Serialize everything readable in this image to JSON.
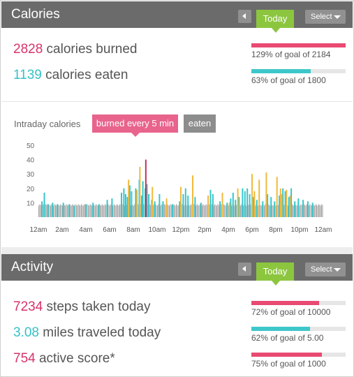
{
  "calories": {
    "title": "Calories",
    "today_label": "Today",
    "select_label": "Select",
    "burned": {
      "value": "2828",
      "label": " calories burned",
      "goal_text": "129% of goal of 2184",
      "progress": 1.0
    },
    "eaten": {
      "value": "1139",
      "label": " calories eaten",
      "goal_text": "63% of goal of 1800",
      "progress": 0.63
    }
  },
  "intraday": {
    "label": "Intraday calories",
    "tab_burned": "burned every 5 min",
    "tab_eaten": "eaten"
  },
  "chart_data": {
    "type": "bar",
    "ylim": [
      0,
      50
    ],
    "y_ticks": [
      "50",
      "40",
      "30",
      "20",
      "10"
    ],
    "x_ticks": [
      "12am",
      "2am",
      "4am",
      "6am",
      "8am",
      "10am",
      "12pm",
      "2pm",
      "4pm",
      "6pm",
      "8pm",
      "10pm",
      "12am"
    ],
    "hours_range": [
      0,
      24
    ],
    "baseline_color": "#9a9a9a",
    "series": [
      {
        "color": "#36c6cb",
        "points": [
          [
            0.3,
            11
          ],
          [
            0.5,
            17
          ],
          [
            0.8,
            9
          ],
          [
            1.2,
            10
          ],
          [
            1.6,
            9
          ],
          [
            2.1,
            10
          ],
          [
            2.6,
            9
          ],
          [
            3.0,
            8
          ],
          [
            4.0,
            9
          ],
          [
            4.6,
            10
          ],
          [
            5.1,
            9
          ],
          [
            5.8,
            12
          ],
          [
            6.2,
            13
          ],
          [
            7.0,
            17
          ],
          [
            7.2,
            20
          ],
          [
            7.35,
            16
          ],
          [
            7.5,
            14
          ],
          [
            7.7,
            22
          ],
          [
            7.85,
            18
          ],
          [
            8.2,
            20
          ],
          [
            8.5,
            26
          ],
          [
            8.7,
            15
          ],
          [
            8.8,
            25
          ],
          [
            9.0,
            20
          ],
          [
            9.15,
            23
          ],
          [
            9.3,
            16
          ],
          [
            9.55,
            12
          ],
          [
            9.8,
            11
          ],
          [
            10.2,
            16
          ],
          [
            10.5,
            11
          ],
          [
            11.3,
            9
          ],
          [
            11.9,
            11
          ],
          [
            12.2,
            16
          ],
          [
            12.4,
            20
          ],
          [
            12.6,
            15
          ],
          [
            13.2,
            14
          ],
          [
            13.7,
            10
          ],
          [
            14.5,
            19
          ],
          [
            14.7,
            16
          ],
          [
            15.3,
            11
          ],
          [
            15.9,
            10
          ],
          [
            16.2,
            13
          ],
          [
            16.4,
            17
          ],
          [
            16.6,
            12
          ],
          [
            16.9,
            14
          ],
          [
            17.2,
            20
          ],
          [
            17.4,
            18
          ],
          [
            17.6,
            20
          ],
          [
            17.8,
            16
          ],
          [
            18.1,
            14
          ],
          [
            18.4,
            12
          ],
          [
            18.9,
            11
          ],
          [
            19.3,
            16
          ],
          [
            19.6,
            14
          ],
          [
            19.9,
            11
          ],
          [
            20.3,
            15
          ],
          [
            20.6,
            20
          ],
          [
            20.8,
            18
          ],
          [
            21.1,
            14
          ],
          [
            21.3,
            20
          ],
          [
            21.6,
            11
          ],
          [
            21.9,
            13
          ],
          [
            22.3,
            12
          ],
          [
            22.7,
            11
          ],
          [
            23.1,
            10
          ]
        ]
      },
      {
        "color": "#f2b93c",
        "points": [
          [
            7.6,
            26
          ],
          [
            8.3,
            19
          ],
          [
            8.55,
            35
          ],
          [
            9.6,
            21
          ],
          [
            10.8,
            13
          ],
          [
            12.0,
            21
          ],
          [
            13.0,
            29
          ],
          [
            14.3,
            15
          ],
          [
            15.5,
            17
          ],
          [
            16.1,
            10
          ],
          [
            16.8,
            20
          ],
          [
            18.0,
            30
          ],
          [
            18.2,
            18
          ],
          [
            18.6,
            26
          ],
          [
            19.2,
            31
          ],
          [
            20.1,
            28
          ],
          [
            20.4,
            20
          ],
          [
            20.5,
            16
          ],
          [
            20.9,
            19
          ],
          [
            21.2,
            15
          ]
        ]
      },
      {
        "color": "#c8305c",
        "points": [
          [
            9.05,
            40
          ]
        ]
      }
    ]
  },
  "activity": {
    "title": "Activity",
    "today_label": "Today",
    "select_label": "Select",
    "steps": {
      "value": "7234",
      "label": " steps taken today",
      "goal_text": "72% of goal of 10000",
      "progress": 0.72
    },
    "miles": {
      "value": "3.08",
      "label": " miles traveled today",
      "goal_text": "62% of goal of 5.00",
      "progress": 0.62
    },
    "score": {
      "value": "754",
      "label": " active score*",
      "goal_text": "75% of goal of 1000",
      "progress": 0.75
    }
  }
}
